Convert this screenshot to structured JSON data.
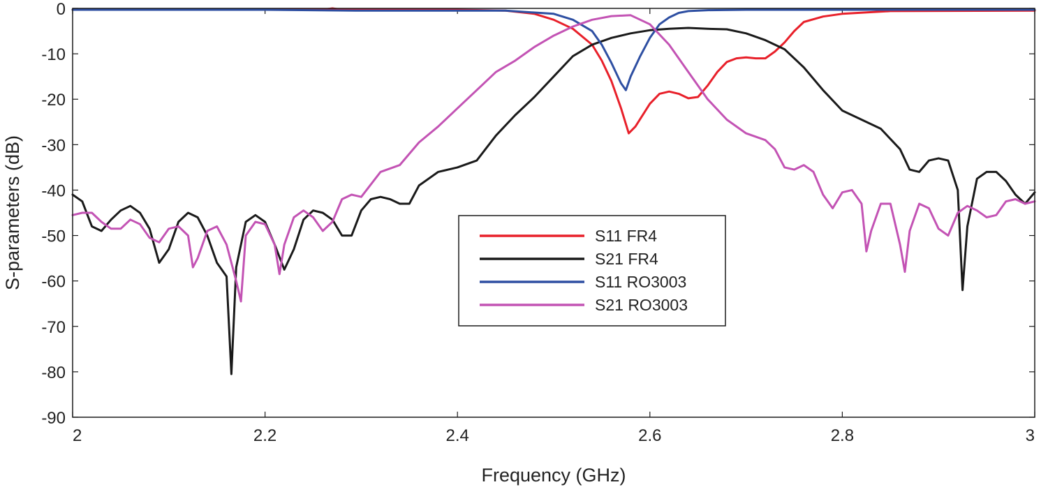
{
  "chart_data": {
    "type": "line",
    "title": "",
    "xlabel": "Frequency (GHz)",
    "ylabel": "S-parameters (dB)",
    "xlim": [
      2,
      3
    ],
    "ylim": [
      -90,
      0
    ],
    "xticks": [
      2,
      2.2,
      2.4,
      2.6,
      2.8,
      3
    ],
    "xtick_labels": [
      "2",
      "2.2",
      "2.4",
      "2.6",
      "2.8",
      "3"
    ],
    "yticks": [
      0,
      -10,
      -20,
      -30,
      -40,
      -50,
      -60,
      -70,
      -80,
      -90
    ],
    "ytick_labels": [
      "0",
      "-10",
      "-20",
      "-30",
      "-40",
      "-50",
      "-60",
      "-70",
      "-80",
      "-90"
    ],
    "grid": false,
    "legend_position": "center",
    "series": [
      {
        "name": "S11 FR4",
        "color": "#e8202a",
        "x": [
          2,
          2.1,
          2.2,
          2.26,
          2.27,
          2.28,
          2.3,
          2.4,
          2.45,
          2.48,
          2.5,
          2.52,
          2.54,
          2.55,
          2.56,
          2.57,
          2.578,
          2.585,
          2.6,
          2.61,
          2.62,
          2.63,
          2.64,
          2.65,
          2.66,
          2.67,
          2.68,
          2.69,
          2.7,
          2.71,
          2.72,
          2.73,
          2.74,
          2.75,
          2.76,
          2.78,
          2.8,
          2.85,
          3
        ],
        "y": [
          -0.3,
          -0.3,
          -0.3,
          -0.3,
          0,
          -0.3,
          -0.3,
          -0.3,
          -0.5,
          -1.2,
          -2.5,
          -4.5,
          -8,
          -11.5,
          -16,
          -22,
          -27.5,
          -26,
          -21,
          -18.8,
          -18.3,
          -18.8,
          -19.8,
          -19.5,
          -17,
          -14,
          -11.8,
          -11,
          -10.8,
          -11,
          -11,
          -9.5,
          -7.5,
          -5,
          -3,
          -1.8,
          -1.2,
          -0.6,
          -0.5
        ]
      },
      {
        "name": "S21 FR4",
        "color": "#1a1a1a",
        "x": [
          2,
          2.01,
          2.02,
          2.03,
          2.04,
          2.05,
          2.06,
          2.07,
          2.08,
          2.09,
          2.1,
          2.11,
          2.12,
          2.13,
          2.14,
          2.15,
          2.16,
          2.165,
          2.17,
          2.18,
          2.19,
          2.2,
          2.21,
          2.22,
          2.23,
          2.24,
          2.25,
          2.26,
          2.27,
          2.28,
          2.29,
          2.3,
          2.31,
          2.32,
          2.33,
          2.34,
          2.35,
          2.36,
          2.38,
          2.4,
          2.42,
          2.44,
          2.46,
          2.48,
          2.5,
          2.52,
          2.54,
          2.56,
          2.58,
          2.6,
          2.62,
          2.64,
          2.66,
          2.68,
          2.7,
          2.72,
          2.74,
          2.76,
          2.78,
          2.8,
          2.82,
          2.84,
          2.86,
          2.87,
          2.88,
          2.89,
          2.9,
          2.91,
          2.92,
          2.925,
          2.93,
          2.94,
          2.95,
          2.96,
          2.97,
          2.98,
          2.99,
          3
        ],
        "y": [
          -41,
          -42.5,
          -48,
          -49,
          -46.5,
          -44.5,
          -43.5,
          -45,
          -48.5,
          -56,
          -53,
          -47,
          -45,
          -46,
          -50,
          -56,
          -59,
          -80.5,
          -57,
          -47,
          -45.5,
          -47,
          -52,
          -57.5,
          -53,
          -46.5,
          -44.5,
          -45,
          -46.5,
          -50,
          -50,
          -44.5,
          -42,
          -41.5,
          -42,
          -43,
          -43,
          -39,
          -36,
          -35,
          -33.5,
          -28,
          -23.5,
          -19.5,
          -15,
          -10.5,
          -8,
          -6.5,
          -5.5,
          -4.8,
          -4.5,
          -4.3,
          -4.5,
          -4.6,
          -5.5,
          -7,
          -9,
          -13,
          -18,
          -22.5,
          -24.5,
          -26.5,
          -31,
          -35.5,
          -36,
          -33.5,
          -33,
          -33.5,
          -40,
          -62,
          -48,
          -37.5,
          -36,
          -36,
          -38,
          -41,
          -43,
          -40.5
        ]
      },
      {
        "name": "S11 RO3003",
        "color": "#2e4fa2",
        "x": [
          2,
          2.1,
          2.2,
          2.3,
          2.4,
          2.45,
          2.5,
          2.52,
          2.54,
          2.55,
          2.56,
          2.57,
          2.575,
          2.58,
          2.59,
          2.6,
          2.61,
          2.62,
          2.63,
          2.64,
          2.65,
          2.66,
          2.7,
          3
        ],
        "y": [
          -0.3,
          -0.3,
          -0.3,
          -0.5,
          -0.5,
          -0.5,
          -1.2,
          -2.5,
          -5,
          -8,
          -12,
          -16.5,
          -18,
          -15,
          -10.5,
          -6.5,
          -3.5,
          -2,
          -1,
          -0.6,
          -0.5,
          -0.4,
          -0.3,
          -0.3
        ]
      },
      {
        "name": "S21 RO3003",
        "color": "#c353b4",
        "x": [
          2,
          2.01,
          2.02,
          2.03,
          2.04,
          2.05,
          2.06,
          2.07,
          2.08,
          2.09,
          2.1,
          2.11,
          2.12,
          2.125,
          2.13,
          2.14,
          2.15,
          2.16,
          2.17,
          2.175,
          2.18,
          2.19,
          2.2,
          2.21,
          2.215,
          2.22,
          2.23,
          2.24,
          2.25,
          2.26,
          2.27,
          2.28,
          2.29,
          2.3,
          2.32,
          2.34,
          2.36,
          2.38,
          2.4,
          2.42,
          2.44,
          2.46,
          2.48,
          2.5,
          2.52,
          2.54,
          2.56,
          2.58,
          2.6,
          2.62,
          2.64,
          2.66,
          2.68,
          2.7,
          2.72,
          2.73,
          2.74,
          2.75,
          2.76,
          2.77,
          2.78,
          2.79,
          2.8,
          2.81,
          2.82,
          2.825,
          2.83,
          2.84,
          2.85,
          2.86,
          2.865,
          2.87,
          2.88,
          2.89,
          2.9,
          2.91,
          2.92,
          2.93,
          2.94,
          2.95,
          2.96,
          2.97,
          2.98,
          2.99,
          3
        ],
        "y": [
          -45.5,
          -45,
          -45,
          -47,
          -48.5,
          -48.5,
          -46.5,
          -47.5,
          -50.5,
          -51.5,
          -48.5,
          -48,
          -50,
          -57,
          -55,
          -49,
          -48,
          -52,
          -60,
          -64.5,
          -50,
          -47,
          -47.5,
          -52,
          -58.5,
          -52,
          -46,
          -44.5,
          -46,
          -49,
          -47,
          -42,
          -41,
          -41.5,
          -36,
          -34.5,
          -29.5,
          -26,
          -22,
          -18,
          -14,
          -11.5,
          -8.5,
          -6,
          -4,
          -2.5,
          -1.7,
          -1.5,
          -3.5,
          -8,
          -14,
          -20,
          -24.5,
          -27.5,
          -29,
          -31,
          -35,
          -35.5,
          -34.5,
          -36,
          -41,
          -44,
          -40.5,
          -40,
          -43,
          -53.5,
          -49,
          -43,
          -43,
          -52,
          -58,
          -49,
          -43,
          -44,
          -48.5,
          -50,
          -45,
          -43.5,
          -44.5,
          -46,
          -45.5,
          -42.5,
          -42,
          -43,
          -42.5
        ]
      }
    ]
  }
}
